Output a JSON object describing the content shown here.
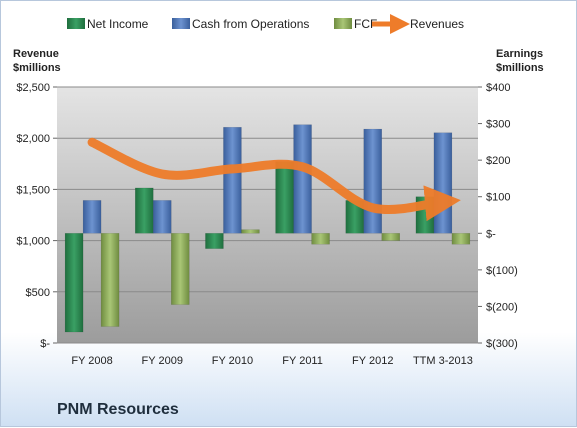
{
  "chart_data": {
    "type": "bar",
    "company": "PNM Resources",
    "categories": [
      "FY 2008",
      "FY 2009",
      "FY 2010",
      "FY 2011",
      "FY 2012",
      "TTM 3-2013"
    ],
    "series": [
      {
        "name": "Net Income",
        "axis": "right",
        "type": "bar",
        "color": "#2e8b57",
        "values": [
          -270,
          124,
          -42,
          196,
          90,
          100
        ]
      },
      {
        "name": "Cash from Operations",
        "axis": "right",
        "type": "bar",
        "color": "#4f77b8",
        "values": [
          90,
          90,
          290,
          297,
          285,
          275
        ]
      },
      {
        "name": "FCF",
        "axis": "right",
        "type": "bar",
        "color": "#8fae5a",
        "values": [
          -255,
          -195,
          10,
          -30,
          -20,
          -30
        ]
      },
      {
        "name": "Revenues",
        "axis": "left",
        "type": "line",
        "color": "#ee7c2a",
        "values": [
          1960,
          1650,
          1700,
          1720,
          1320,
          1380
        ]
      }
    ],
    "left_axis": {
      "title": "Revenue\n$millions",
      "range": [
        0,
        2500
      ],
      "ticks": [
        0,
        500,
        1000,
        1500,
        2000,
        2500
      ],
      "tick_labels": [
        "$-",
        "$500",
        "$1,000",
        "$1,500",
        "$2,000",
        "$2,500"
      ]
    },
    "right_axis": {
      "title": "Earnings\n$millions",
      "range": [
        -300,
        400
      ],
      "ticks": [
        -300,
        -200,
        -100,
        0,
        100,
        200,
        300,
        400
      ],
      "tick_labels": [
        "$(300)",
        "$(200)",
        "$(100)",
        "$-",
        "$100",
        "$200",
        "$300",
        "$400"
      ]
    },
    "legend": {
      "position": "top"
    },
    "grid": true
  }
}
